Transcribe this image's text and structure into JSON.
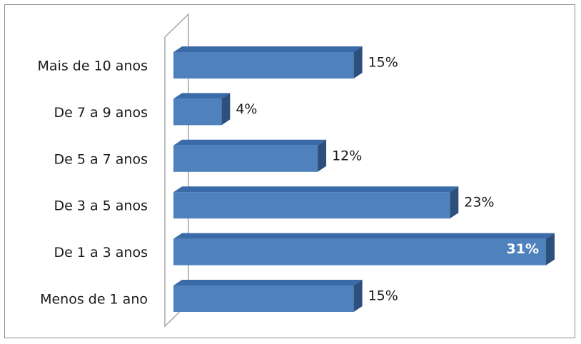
{
  "chart_data": {
    "type": "bar",
    "orientation": "horizontal",
    "style": "3d",
    "categories": [
      "Mais de 10 anos",
      "De 7 a 9 anos",
      "De 5 a 7 anos",
      "De 3 a 5 anos",
      "De 1 a 3 anos",
      "Menos de 1 ano"
    ],
    "values": [
      15,
      4,
      12,
      23,
      31,
      15
    ],
    "value_labels": [
      "15%",
      "4%",
      "12%",
      "23%",
      "31%",
      "15%"
    ],
    "label_inside_bar": [
      false,
      false,
      false,
      false,
      true,
      false
    ],
    "xlim": [
      0,
      31
    ],
    "grid": false,
    "legend": "none",
    "colors": {
      "bar_front": "#4f81bd",
      "bar_top": "#3a6ba8",
      "bar_side": "#2c4f7c",
      "wall": "#a6a6a6"
    }
  }
}
